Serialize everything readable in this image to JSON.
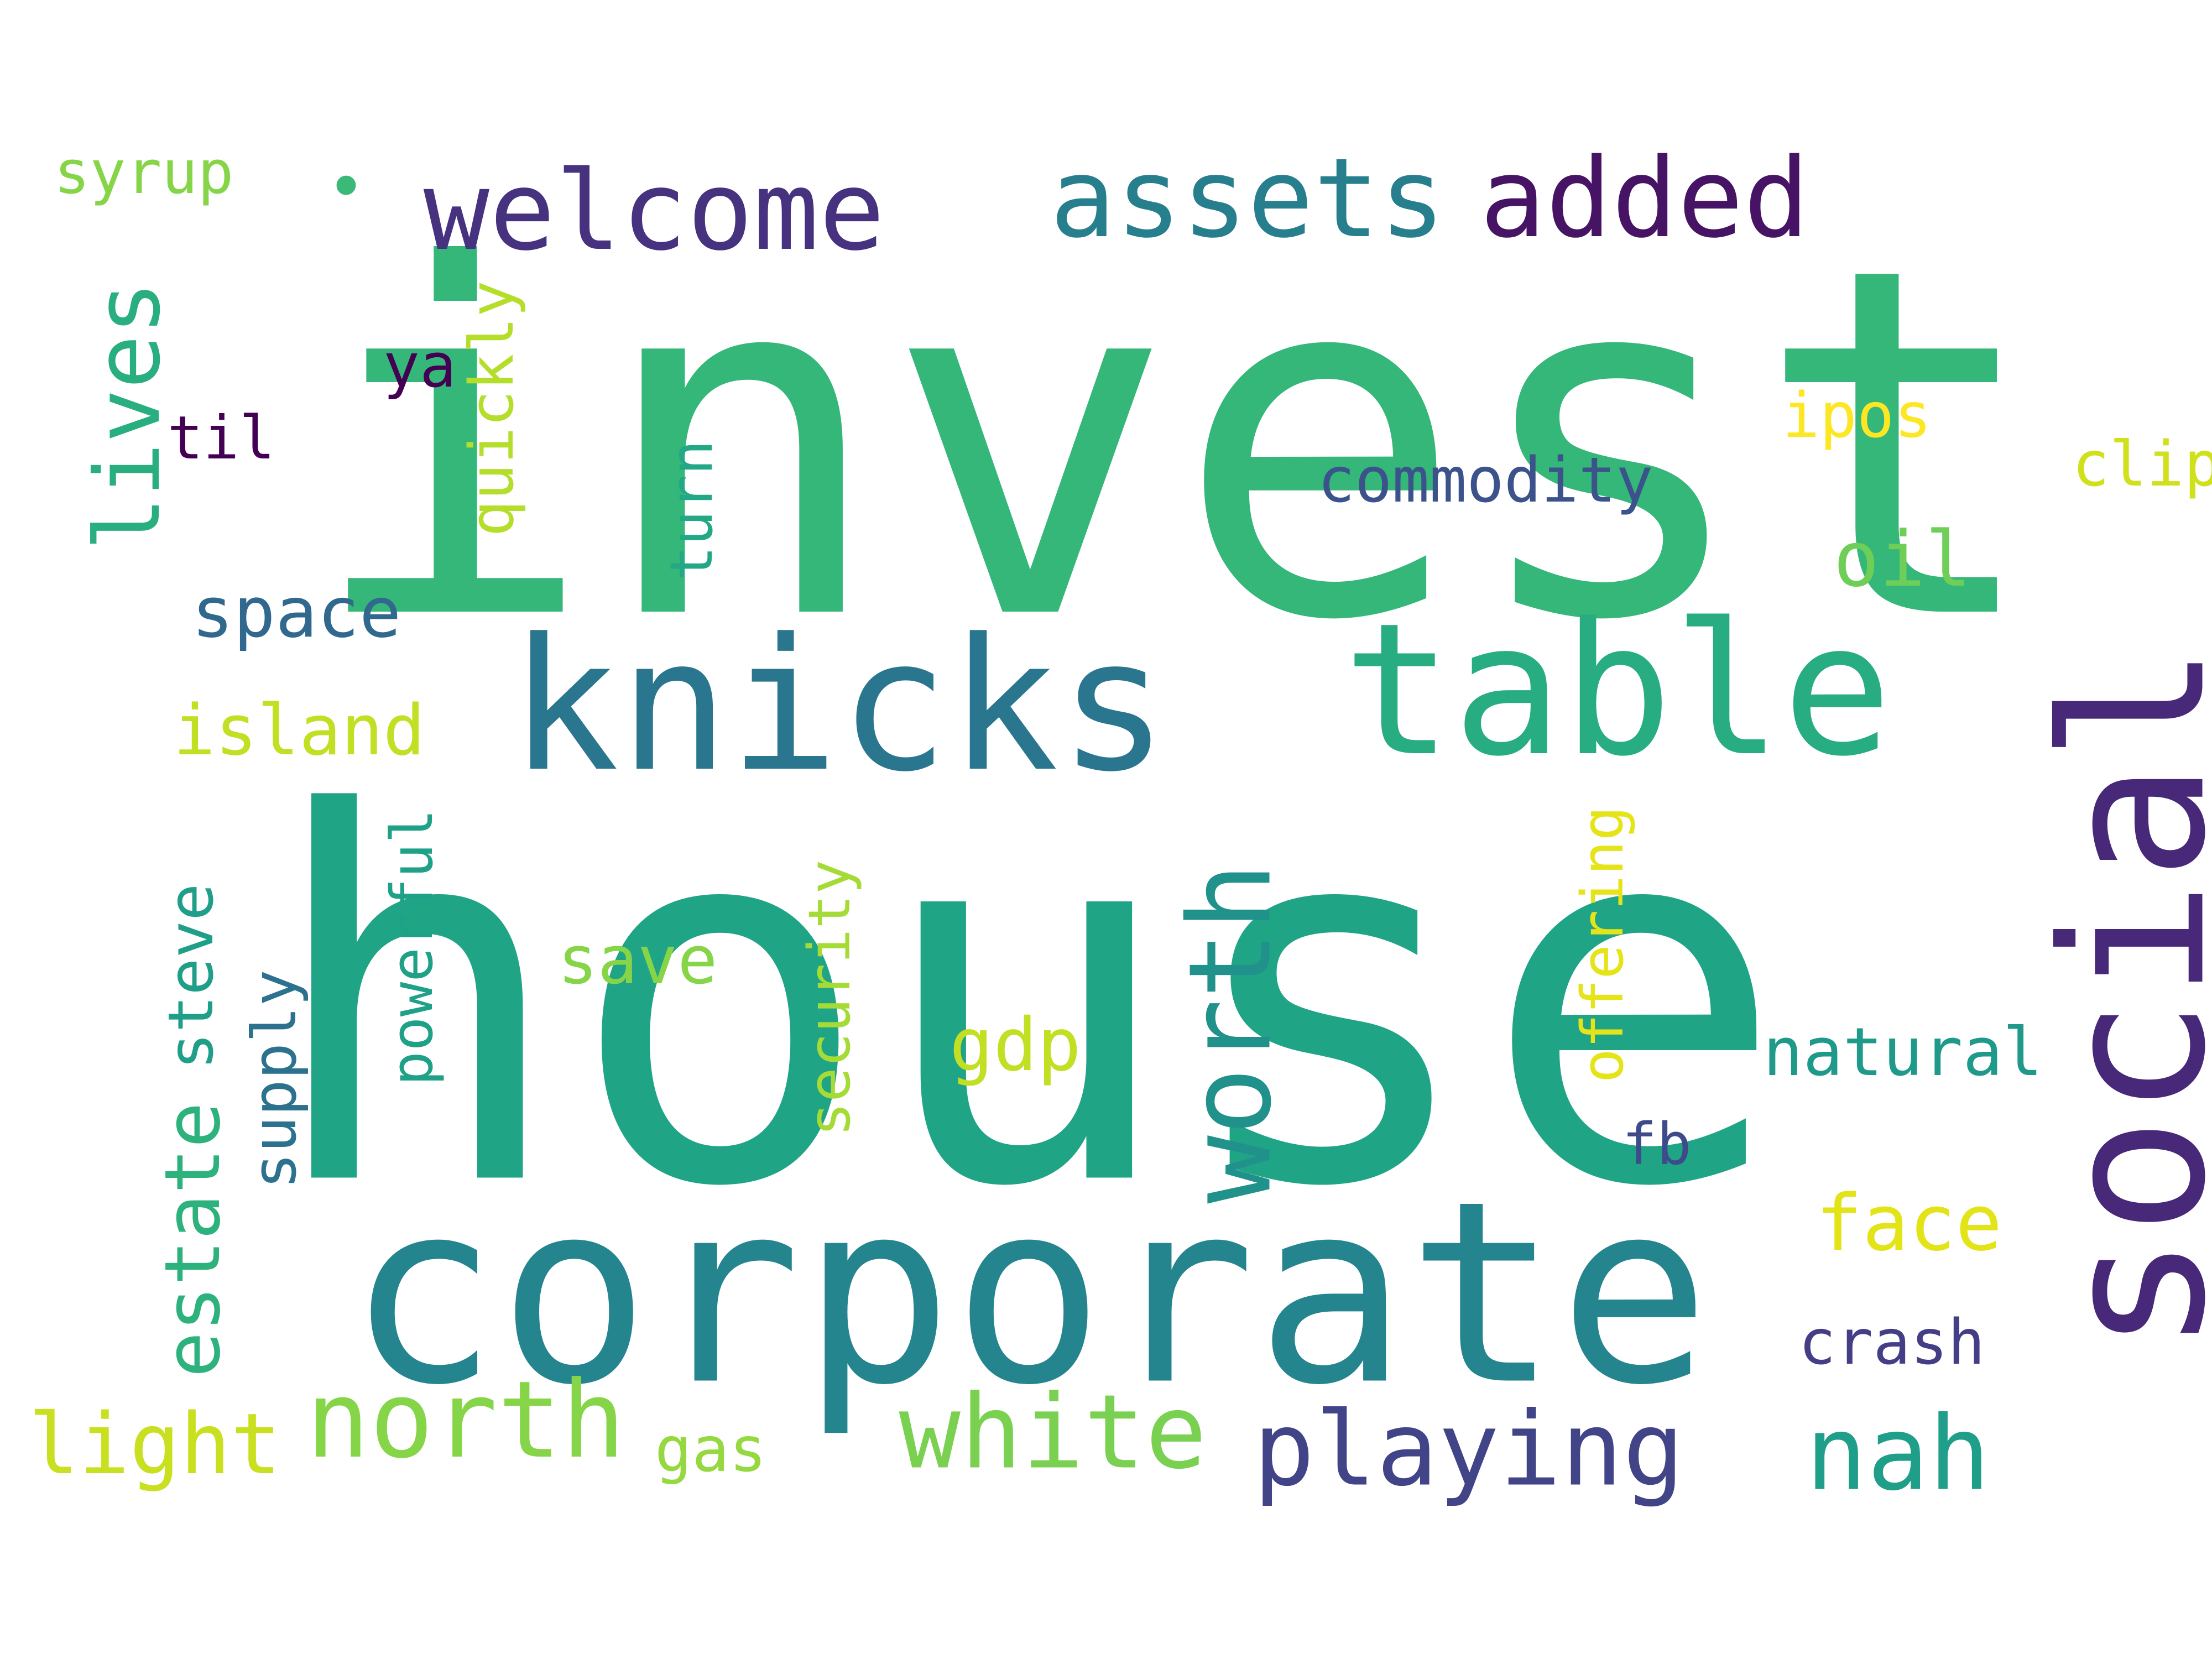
{
  "word_cloud": {
    "background": "#ffffff",
    "words": [
      {
        "id": "invest",
        "text": "invest",
        "color": "#35b779",
        "orientation": "horizontal"
      },
      {
        "id": "house",
        "text": "house",
        "color": "#20a486",
        "orientation": "horizontal"
      },
      {
        "id": "corporate",
        "text": "corporate",
        "color": "#25858e",
        "orientation": "horizontal"
      },
      {
        "id": "knicks",
        "text": "knicks",
        "color": "#2a768e",
        "orientation": "horizontal"
      },
      {
        "id": "table",
        "text": "table",
        "color": "#27ad81",
        "orientation": "horizontal"
      },
      {
        "id": "social",
        "text": "social",
        "color": "#482878",
        "orientation": "vertical"
      },
      {
        "id": "welcome",
        "text": "welcome",
        "color": "#46327e",
        "orientation": "horizontal"
      },
      {
        "id": "assets",
        "text": "assets",
        "color": "#277f8e",
        "orientation": "horizontal"
      },
      {
        "id": "added",
        "text": "added",
        "color": "#471365",
        "orientation": "horizontal"
      },
      {
        "id": "lives",
        "text": "lives",
        "color": "#29af7f",
        "orientation": "vertical"
      },
      {
        "id": "worth",
        "text": "worth",
        "color": "#21918c",
        "orientation": "vertical"
      },
      {
        "id": "white",
        "text": "white",
        "color": "#7ad151",
        "orientation": "horizontal"
      },
      {
        "id": "playing",
        "text": "playing",
        "color": "#414487",
        "orientation": "horizontal"
      },
      {
        "id": "nah",
        "text": "nah",
        "color": "#1f9e89",
        "orientation": "horizontal"
      },
      {
        "id": "north",
        "text": "north",
        "color": "#86d549",
        "orientation": "horizontal"
      },
      {
        "id": "space",
        "text": "space",
        "color": "#31688e",
        "orientation": "horizontal"
      },
      {
        "id": "island",
        "text": "island",
        "color": "#c2df23",
        "orientation": "horizontal"
      },
      {
        "id": "syrup",
        "text": "syrup",
        "color": "#86d549",
        "orientation": "horizontal"
      },
      {
        "id": "ya",
        "text": "ya",
        "color": "#440154",
        "orientation": "horizontal"
      },
      {
        "id": "til",
        "text": "til",
        "color": "#440154",
        "orientation": "horizontal"
      },
      {
        "id": "quickly",
        "text": "quickly",
        "color": "#b5de2b",
        "orientation": "vertical"
      },
      {
        "id": "turn",
        "text": "turn",
        "color": "#22a884",
        "orientation": "vertical"
      },
      {
        "id": "commodity",
        "text": "commodity",
        "color": "#3b528b",
        "orientation": "horizontal"
      },
      {
        "id": "ipos",
        "text": "ipos",
        "color": "#fde725",
        "orientation": "horizontal"
      },
      {
        "id": "clip",
        "text": "clip",
        "color": "#d0e11c",
        "orientation": "horizontal"
      },
      {
        "id": "oil",
        "text": "oil",
        "color": "#6ece58",
        "orientation": "horizontal"
      },
      {
        "id": "steve",
        "text": "steve",
        "color": "#1f9e89",
        "orientation": "vertical"
      },
      {
        "id": "estate",
        "text": "estate",
        "color": "#2db27d",
        "orientation": "vertical"
      },
      {
        "id": "supply",
        "text": "supply",
        "color": "#2c728e",
        "orientation": "vertical"
      },
      {
        "id": "powerful",
        "text": "powerful",
        "color": "#1fa187",
        "orientation": "vertical"
      },
      {
        "id": "save",
        "text": "save",
        "color": "#86d549",
        "orientation": "horizontal"
      },
      {
        "id": "security",
        "text": "security",
        "color": "#a5db36",
        "orientation": "vertical"
      },
      {
        "id": "gdp",
        "text": "gdp",
        "color": "#c2df23",
        "orientation": "horizontal"
      },
      {
        "id": "offering",
        "text": "offering",
        "color": "#e5e419",
        "orientation": "vertical"
      },
      {
        "id": "natural",
        "text": "natural",
        "color": "#1f9a8a",
        "orientation": "horizontal"
      },
      {
        "id": "fb",
        "text": "fb",
        "color": "#3e4a89",
        "orientation": "horizontal"
      },
      {
        "id": "face",
        "text": "face",
        "color": "#e2e418",
        "orientation": "horizontal"
      },
      {
        "id": "crash",
        "text": "crash",
        "color": "#433e85",
        "orientation": "horizontal"
      },
      {
        "id": "light",
        "text": "light",
        "color": "#c8e020",
        "orientation": "horizontal"
      },
      {
        "id": "gas",
        "text": "gas",
        "color": "#95d840",
        "orientation": "horizontal"
      },
      {
        "id": "dot",
        "text": "•",
        "color": "#3aba76",
        "orientation": "horizontal"
      }
    ]
  }
}
